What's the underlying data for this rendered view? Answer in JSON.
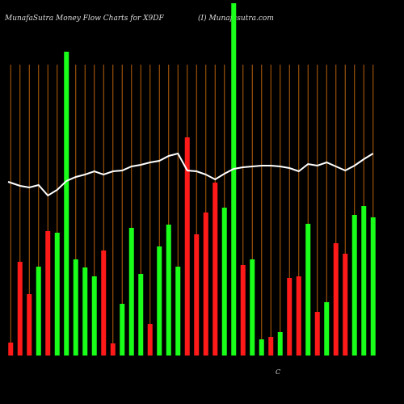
{
  "chart_data": {
    "type": "bar",
    "title": "MunafaSutra  Money Flow  Charts for X9DF",
    "subtitle": "(I) Munafasutra.com",
    "annotation": "C",
    "ylim": [
      0,
      440
    ],
    "guide_color": "#b8600b",
    "line_color": "#ffffff",
    "series": [
      {
        "name": "volume",
        "colors": [
          "#ff1a1a",
          "#ff1a1a",
          "#ff1a1a",
          "#1aff1a",
          "#ff1a1a",
          "#1aff1a",
          "#1aff1a",
          "#1aff1a",
          "#1aff1a",
          "#1aff1a",
          "#ff1a1a",
          "#ff1a1a",
          "#1aff1a",
          "#1aff1a",
          "#1aff1a",
          "#ff1a1a",
          "#1aff1a",
          "#1aff1a",
          "#1aff1a",
          "#ff1a1a",
          "#ff1a1a",
          "#ff1a1a",
          "#ff1a1a",
          "#1aff1a",
          "#1aff1a",
          "#ff1a1a",
          "#1aff1a",
          "#1aff1a",
          "#ff1a1a",
          "#1aff1a",
          "#ff1a1a",
          "#ff1a1a",
          "#1aff1a",
          "#ff1a1a",
          "#1aff1a",
          "#ff1a1a",
          "#ff1a1a",
          "#1aff1a",
          "#1aff1a",
          "#1aff1a"
        ],
        "values": [
          16,
          116,
          76,
          110,
          154,
          152,
          376,
          119,
          109,
          98,
          130,
          15,
          64,
          158,
          101,
          39,
          135,
          162,
          110,
          270,
          150,
          177,
          214,
          183,
          436,
          112,
          119,
          20,
          23,
          29,
          96,
          98,
          163,
          54,
          66,
          139,
          126,
          174,
          185,
          171
        ]
      },
      {
        "name": "price",
        "values": [
          215,
          210,
          208,
          211,
          198,
          205,
          216,
          221,
          224,
          228,
          224,
          228,
          229,
          234,
          236,
          239,
          241,
          247,
          250,
          229,
          228,
          224,
          218,
          225,
          231,
          233,
          234,
          235,
          235,
          234,
          232,
          228,
          237,
          235,
          239,
          234,
          229,
          235,
          243,
          250
        ]
      }
    ]
  }
}
